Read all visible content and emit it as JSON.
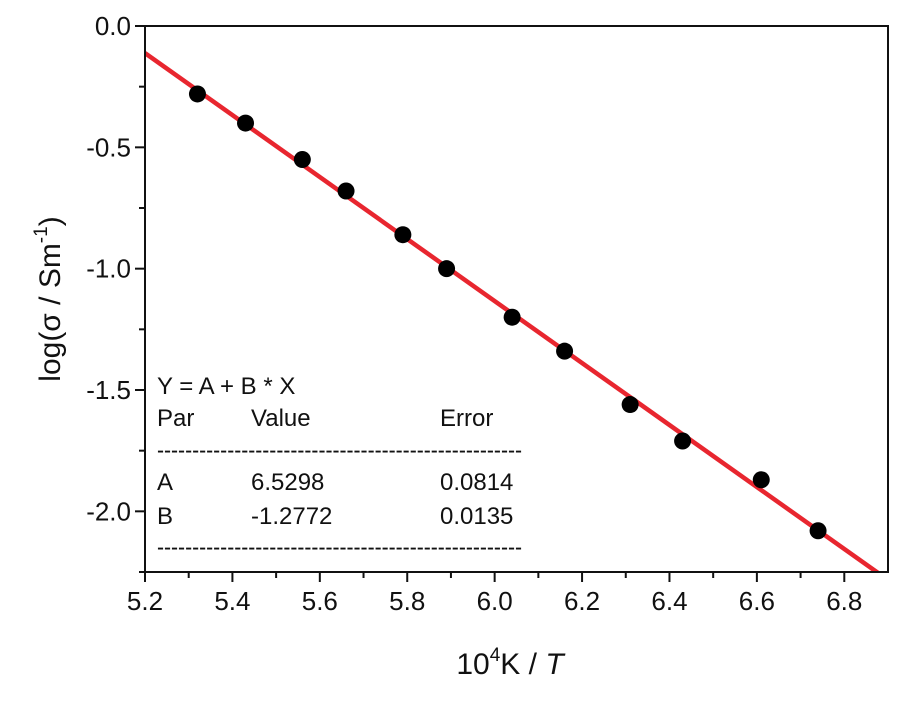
{
  "chart_data": {
    "type": "scatter",
    "xlabel": {
      "prefix": "10",
      "sup": "4",
      "mid": "K / ",
      "var": "T"
    },
    "ylabel": {
      "main": "log(σ / Sm",
      "sup": "-1",
      "tail": ")"
    },
    "xlim": [
      5.2,
      6.9
    ],
    "ylim": [
      -2.25,
      0.0
    ],
    "xticks": [
      5.2,
      5.4,
      5.6,
      5.8,
      6.0,
      6.2,
      6.4,
      6.6,
      6.8
    ],
    "xtick_labels": [
      "5.2",
      "5.4",
      "5.6",
      "5.8",
      "6.0",
      "6.2",
      "6.4",
      "6.6",
      "6.8"
    ],
    "yticks": [
      0.0,
      -0.5,
      -1.0,
      -1.5,
      -2.0
    ],
    "ytick_labels": [
      "0.0",
      "-0.5",
      "-1.0",
      "-1.5",
      "-2.0"
    ],
    "grid": false,
    "series": [
      {
        "kind": "points",
        "color": "#000000",
        "x": [
          5.32,
          5.43,
          5.56,
          5.66,
          5.79,
          5.89,
          6.04,
          6.16,
          6.31,
          6.43,
          6.61,
          6.74
        ],
        "y": [
          -0.28,
          -0.4,
          -0.55,
          -0.68,
          -0.86,
          -1.0,
          -1.2,
          -1.34,
          -1.56,
          -1.71,
          -1.87,
          -2.08
        ]
      },
      {
        "kind": "fit-line",
        "color": "#e8262f",
        "intercept": 6.5298,
        "slope": -1.2772
      }
    ],
    "fit_table": {
      "equation": "Y = A + B * X",
      "headers": [
        "Par",
        "Value",
        "Error"
      ],
      "divider": "----------------------------------------------------",
      "rows": [
        [
          "A",
          "6.5298",
          "0.0814"
        ],
        [
          "B",
          "-1.2772",
          "0.0135"
        ]
      ]
    }
  }
}
